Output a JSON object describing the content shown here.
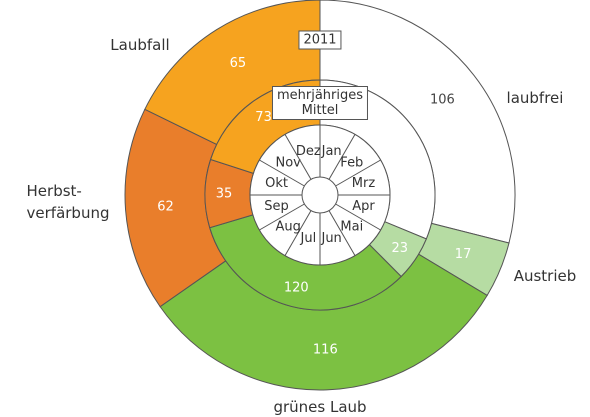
{
  "chart_data": {
    "type": "donut",
    "categories": [
      "laubfrei",
      "Austrieb",
      "grünes Laub",
      "Herbst-\nverfärbung",
      "Laubfall"
    ],
    "colors": [
      "#ffffff",
      "#b6dca3",
      "#7cc142",
      "#e97e2b",
      "#f6a31f"
    ],
    "series": [
      {
        "name": "2011",
        "values": [
          106,
          17,
          116,
          62,
          65
        ]
      },
      {
        "name": "mehrjähriges\nMittel",
        "values": [
          114,
          23,
          120,
          35,
          73
        ],
        "value_labels": [
          null,
          "23",
          "120",
          "35",
          "73"
        ]
      }
    ],
    "months": [
      "Jan",
      "Feb",
      "Mrz",
      "Apr",
      "Mai",
      "Jun",
      "Jul",
      "Aug",
      "Sep",
      "Okt",
      "Nov",
      "Dez"
    ]
  }
}
